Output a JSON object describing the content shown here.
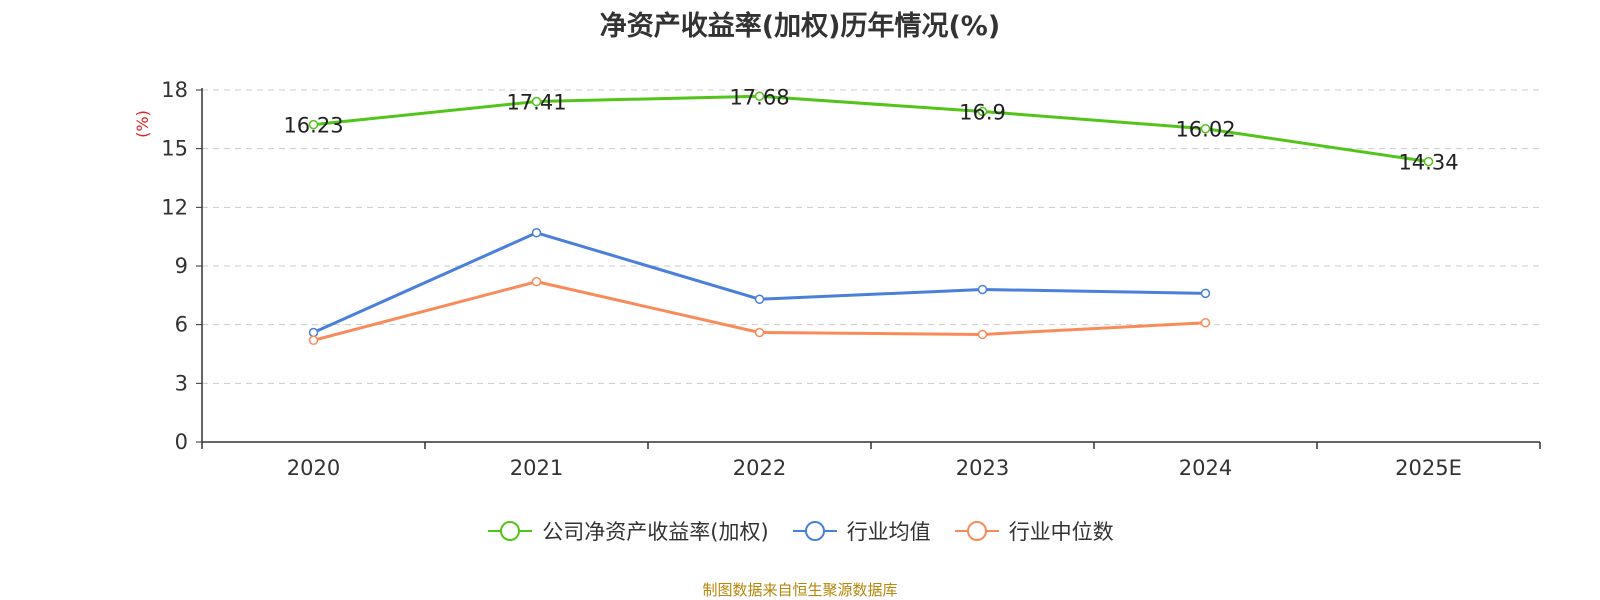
{
  "chart_data": {
    "type": "line",
    "title": "净资产收益率(加权)历年情况(%)",
    "ylabel": "(%)",
    "xlabel": "",
    "categories": [
      "2020",
      "2021",
      "2022",
      "2023",
      "2024",
      "2025E"
    ],
    "ylim": [
      0,
      18
    ],
    "yticks": [
      0,
      3,
      6,
      9,
      12,
      15,
      18
    ],
    "grid": true,
    "legend_position": "bottom",
    "series": [
      {
        "name": "公司净资产收益率(加权)",
        "color": "#52c41a",
        "values": [
          16.23,
          17.41,
          17.68,
          16.9,
          16.02,
          14.34
        ],
        "labels": [
          "16.23",
          "17.41",
          "17.68",
          "16.9",
          "16.02",
          "14.34"
        ]
      },
      {
        "name": "行业均值",
        "color": "#4a7fdc",
        "values": [
          5.6,
          10.7,
          7.3,
          7.8,
          7.6,
          null
        ]
      },
      {
        "name": "行业中位数",
        "color": "#f98b5b",
        "values": [
          5.2,
          8.2,
          5.6,
          5.5,
          6.1,
          null
        ]
      }
    ],
    "source": "制图数据来自恒生聚源数据库"
  }
}
